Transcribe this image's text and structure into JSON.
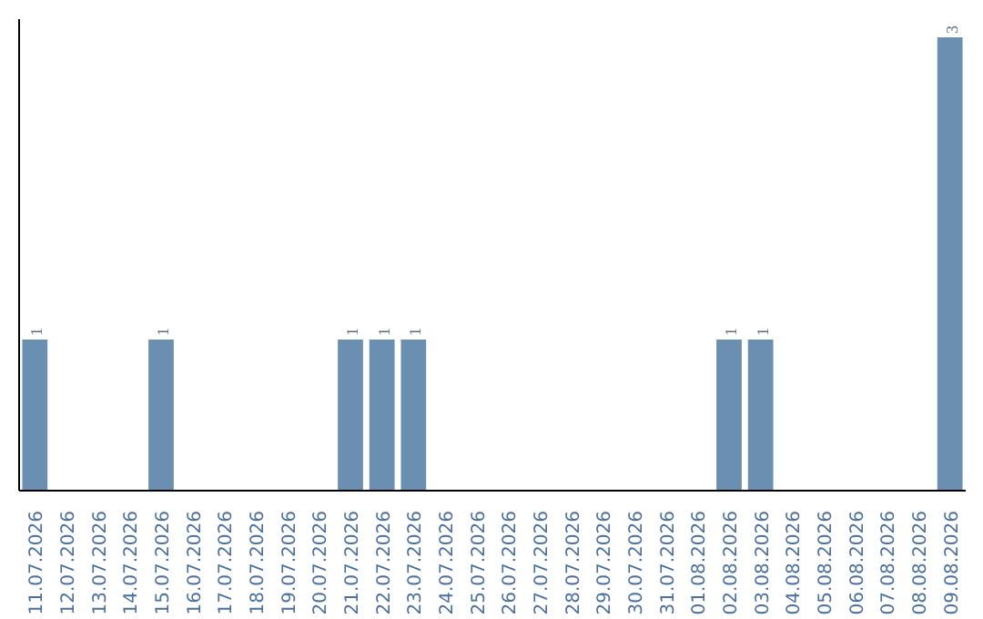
{
  "chart_data": {
    "type": "bar",
    "categories": [
      "11.07.2026",
      "12.07.2026",
      "13.07.2026",
      "14.07.2026",
      "15.07.2026",
      "16.07.2026",
      "17.07.2026",
      "18.07.2026",
      "19.07.2026",
      "20.07.2026",
      "21.07.2026",
      "22.07.2026",
      "23.07.2026",
      "24.07.2026",
      "25.07.2026",
      "26.07.2026",
      "27.07.2026",
      "28.07.2026",
      "29.07.2026",
      "30.07.2026",
      "31.07.2026",
      "01.08.2026",
      "02.08.2026",
      "03.08.2026",
      "04.08.2026",
      "05.08.2026",
      "06.08.2026",
      "07.08.2026",
      "08.08.2026",
      "09.08.2026"
    ],
    "values": [
      1,
      0,
      0,
      0,
      1,
      0,
      0,
      0,
      0,
      0,
      1,
      1,
      1,
      0,
      0,
      0,
      0,
      0,
      0,
      0,
      0,
      0,
      1,
      1,
      0,
      0,
      0,
      0,
      0,
      3
    ],
    "value_labels": [
      "1",
      null,
      null,
      null,
      "1",
      null,
      null,
      null,
      null,
      null,
      "1",
      "1",
      "1",
      null,
      null,
      null,
      null,
      null,
      null,
      null,
      null,
      null,
      "1",
      "1",
      null,
      null,
      null,
      null,
      null,
      "3"
    ],
    "color": "#6b8fb0",
    "grid": false,
    "tick_labels": "x"
  }
}
